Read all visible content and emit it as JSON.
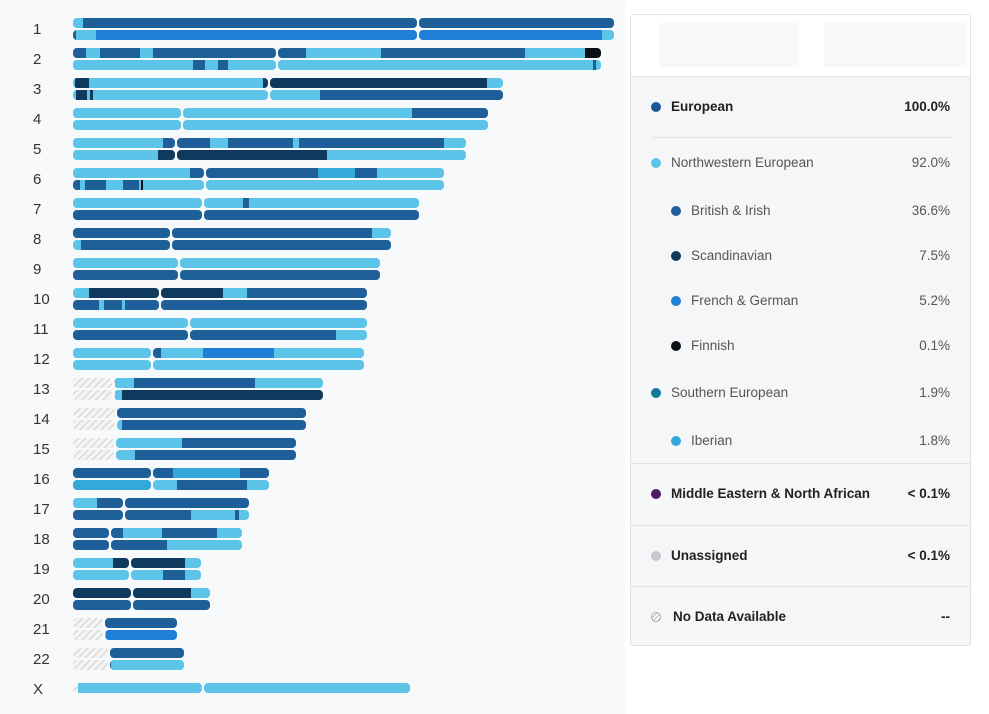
{
  "chromosomes": [
    "1",
    "2",
    "3",
    "4",
    "5",
    "6",
    "7",
    "8",
    "9",
    "10",
    "11",
    "12",
    "13",
    "14",
    "15",
    "16",
    "17",
    "18",
    "19",
    "20",
    "21",
    "22",
    "X"
  ],
  "colors": {
    "european": "#1b5a96",
    "northwestern": "#5bc4e8",
    "british_irish": "#1f5f99",
    "scandinavian": "#0f3a5e",
    "french_german": "#1f7fd6",
    "finnish": "#0b0f18",
    "southern": "#12789a",
    "iberian": "#33a9d9",
    "mena": "#4a1a66",
    "unassigned": "#c5c8cc",
    "nodata": "#d8d8d8"
  },
  "legend": {
    "items": [
      {
        "label": "European",
        "pct": "100.0%",
        "color_key": "european",
        "level": 0,
        "style": "bold"
      },
      {
        "label": "Northwestern European",
        "pct": "92.0%",
        "color_key": "northwestern",
        "level": 1,
        "style": "normal"
      },
      {
        "label": "British & Irish",
        "pct": "36.6%",
        "color_key": "british_irish",
        "level": 2,
        "style": "normal"
      },
      {
        "label": "Scandinavian",
        "pct": "7.5%",
        "color_key": "scandinavian",
        "level": 2,
        "style": "normal"
      },
      {
        "label": "French & German",
        "pct": "5.2%",
        "color_key": "french_german",
        "level": 2,
        "style": "normal"
      },
      {
        "label": "Finnish",
        "pct": "0.1%",
        "color_key": "finnish",
        "level": 2,
        "style": "normal"
      },
      {
        "label": "Southern European",
        "pct": "1.9%",
        "color_key": "southern",
        "level": 1,
        "style": "normal"
      },
      {
        "label": "Iberian",
        "pct": "1.8%",
        "color_key": "iberian",
        "level": 2,
        "style": "normal"
      },
      {
        "label": "Middle Eastern & North African",
        "pct": "< 0.1%",
        "color_key": "mena",
        "level": 0,
        "style": "bold"
      },
      {
        "label": "Unassigned",
        "pct": "< 0.1%",
        "color_key": "unassigned",
        "level": 0,
        "style": "bold"
      },
      {
        "label": "No Data Available",
        "pct": "--",
        "color_key": "nodata",
        "level": 0,
        "style": "bold"
      }
    ]
  }
}
